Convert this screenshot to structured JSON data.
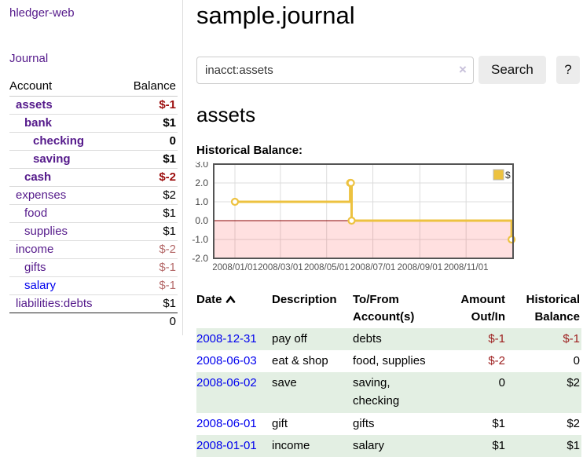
{
  "app": {
    "brand": "hledger-web"
  },
  "sidebar": {
    "journal_link": "Journal",
    "header": {
      "account": "Account",
      "balance": "Balance"
    },
    "accounts": [
      {
        "name": "assets",
        "depth": 1,
        "balance": "$-1",
        "bold": true,
        "negative": true,
        "blue": false
      },
      {
        "name": "bank",
        "depth": 2,
        "balance": "$1",
        "bold": true,
        "negative": false,
        "blue": false
      },
      {
        "name": "checking",
        "depth": 3,
        "balance": "0",
        "bold": true,
        "negative": false,
        "blue": false
      },
      {
        "name": "saving",
        "depth": 3,
        "balance": "$1",
        "bold": true,
        "negative": false,
        "blue": false
      },
      {
        "name": "cash",
        "depth": 2,
        "balance": "$-2",
        "bold": true,
        "negative": true,
        "blue": false
      },
      {
        "name": "expenses",
        "depth": 1,
        "balance": "$2",
        "bold": false,
        "negative": false,
        "blue": false
      },
      {
        "name": "food",
        "depth": 2,
        "balance": "$1",
        "bold": false,
        "negative": false,
        "blue": false
      },
      {
        "name": "supplies",
        "depth": 2,
        "balance": "$1",
        "bold": false,
        "negative": false,
        "blue": false
      },
      {
        "name": "income",
        "depth": 1,
        "balance": "$-2",
        "bold": false,
        "negative": true,
        "blue": false
      },
      {
        "name": "gifts",
        "depth": 2,
        "balance": "$-1",
        "bold": false,
        "negative": true,
        "blue": false
      },
      {
        "name": "salary",
        "depth": 2,
        "balance": "$-1",
        "bold": false,
        "negative": true,
        "blue": true
      },
      {
        "name": "liabilities:debts",
        "depth": 1,
        "balance": "$1",
        "bold": false,
        "negative": false,
        "blue": false
      }
    ],
    "total": "0"
  },
  "header": {
    "title": "sample.journal"
  },
  "search": {
    "value": "inacct:assets",
    "clear_icon": "×",
    "button_label": "Search",
    "help_label": "?"
  },
  "account_page": {
    "heading": "assets",
    "chart_label": "Historical Balance:"
  },
  "chart_data": {
    "type": "line",
    "title": "Historical Balance",
    "legend": [
      {
        "label": "$",
        "color": "#edc240"
      }
    ],
    "legend_position": "top-right",
    "grid": true,
    "series": [
      {
        "name": "$",
        "step": true,
        "color": "#edc240",
        "points": [
          [
            "2008-01-01",
            1
          ],
          [
            "2008-06-01",
            2
          ],
          [
            "2008-06-02",
            2
          ],
          [
            "2008-06-03",
            0
          ],
          [
            "2008-12-31",
            -1
          ]
        ]
      }
    ],
    "xlim": [
      "2007-12-04",
      "2009-01-02"
    ],
    "ylim": [
      -2.0,
      3.0
    ],
    "yticks": [
      "3.0",
      "2.0",
      "1.0",
      "0.0",
      "-1.0",
      "-2.0"
    ],
    "xticks": [
      {
        "label": "2008/01/01",
        "date": "2008-01-01"
      },
      {
        "label": "2008/03/01",
        "date": "2008-03-01"
      },
      {
        "label": "2008/05/01",
        "date": "2008-05-01"
      },
      {
        "label": "2008/07/01",
        "date": "2008-07-01"
      },
      {
        "label": "2008/09/01",
        "date": "2008-09-01"
      },
      {
        "label": "2008/11/01",
        "date": "2008-11-01"
      }
    ],
    "negative_region": {
      "from": 0.0,
      "to": -2.0,
      "fill": "rgba(255,0,0,0.12)"
    },
    "zero_line_color": "#8b0000",
    "plot_border_color": "#545454",
    "gridline_color": "#dcdcdc"
  },
  "register": {
    "columns": {
      "date": "Date",
      "description": "Description",
      "tofrom": "To/From Account(s)",
      "amount": "Amount Out/In",
      "historical": "Historical Balance"
    },
    "sort": {
      "column": "date",
      "direction": "asc"
    },
    "rows": [
      {
        "date": "2008-12-31",
        "description": "pay off",
        "tofrom": "debts",
        "amount": "$-1",
        "historical": "$-1"
      },
      {
        "date": "2008-06-03",
        "description": "eat & shop",
        "tofrom": "food, supplies",
        "amount": "$-2",
        "historical": "0"
      },
      {
        "date": "2008-06-02",
        "description": "save",
        "tofrom": "saving, checking",
        "amount": "0",
        "historical": "$2"
      },
      {
        "date": "2008-06-01",
        "description": "gift",
        "tofrom": "gifts",
        "amount": "$1",
        "historical": "$2"
      },
      {
        "date": "2008-01-01",
        "description": "income",
        "tofrom": "salary",
        "amount": "$1",
        "historical": "$1"
      }
    ]
  }
}
